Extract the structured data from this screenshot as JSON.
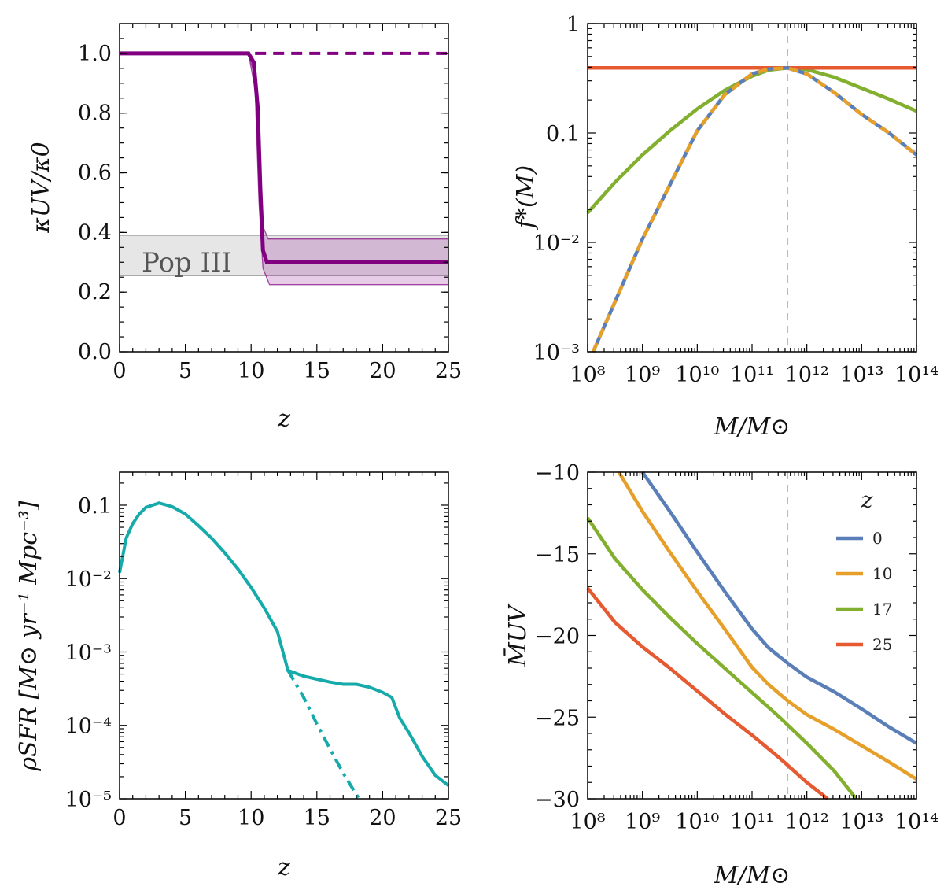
{
  "chart_data": [
    {
      "id": "kappa",
      "type": "line",
      "xlabel": "z",
      "ylabel": "κUV/κ0",
      "xlim": [
        0,
        25
      ],
      "ylim": [
        0,
        1.1
      ],
      "xticks": [
        0,
        5,
        10,
        15,
        20,
        25
      ],
      "xtick_labels": [
        "0",
        "5",
        "10",
        "15",
        "20",
        "25"
      ],
      "yticks": [
        0,
        0.2,
        0.4,
        0.6,
        0.8,
        1.0
      ],
      "ytick_labels": [
        "0.0",
        "0.2",
        "0.4",
        "0.6",
        "0.8",
        "1.0"
      ],
      "annotation": "Pop III",
      "popIII_band": {
        "z": [
          0,
          25
        ],
        "low": 0.255,
        "high": 0.39
      },
      "colors": {
        "main": "#800080",
        "band": "#e6e6e6"
      },
      "series": [
        {
          "name": "kappa",
          "style": "solid",
          "z": [
            0,
            9.8,
            10.2,
            10.5,
            10.7,
            10.9,
            11.2,
            25
          ],
          "y": [
            1.0,
            1.0,
            0.97,
            0.82,
            0.55,
            0.34,
            0.3,
            0.3
          ]
        },
        {
          "name": "kappa-upper",
          "style": "thin",
          "z": [
            0,
            9.8,
            10.3,
            10.6,
            10.9,
            11.3,
            25
          ],
          "y": [
            1.0,
            1.0,
            0.92,
            0.62,
            0.42,
            0.378,
            0.378
          ]
        },
        {
          "name": "kappa-lower",
          "style": "thin",
          "z": [
            0,
            9.8,
            10.3,
            10.6,
            10.9,
            11.4,
            25
          ],
          "y": [
            1.0,
            1.0,
            0.88,
            0.5,
            0.28,
            0.225,
            0.225
          ]
        },
        {
          "name": "kappa-constant",
          "style": "dashed",
          "z": [
            10.3,
            25
          ],
          "y": [
            1.0,
            1.0
          ]
        }
      ]
    },
    {
      "id": "fstar",
      "type": "line",
      "xlabel": "M/M⊙",
      "ylabel": "f*(M)",
      "xscale": "log",
      "yscale": "log",
      "xlim_log10": [
        8,
        14
      ],
      "ylim_log10": [
        -3,
        0
      ],
      "xtick_labels": [
        "10⁸",
        "10⁹",
        "10¹⁰",
        "10¹¹",
        "10¹²",
        "10¹³",
        "10¹⁴"
      ],
      "ytick_labels": [
        "10⁻³",
        "10⁻²",
        "0.1",
        "1"
      ],
      "vline_log10M": 11.65,
      "series": [
        {
          "name": "z=0",
          "color": "#5a7fb8",
          "log10M": [
            8.1,
            9,
            10,
            10.5,
            11,
            11.3,
            11.65,
            12,
            12.5,
            13,
            13.5,
            14
          ],
          "log10f": [
            -3.0,
            -1.97,
            -0.98,
            -0.65,
            -0.46,
            -0.415,
            -0.405,
            -0.46,
            -0.63,
            -0.83,
            -1.0,
            -1.2
          ]
        },
        {
          "name": "z=10",
          "color": "#e6a02a",
          "log10M": [
            8.1,
            9,
            10,
            10.5,
            11,
            11.3,
            11.65,
            12,
            12.5,
            13,
            13.5,
            14
          ],
          "log10f": [
            -3.0,
            -1.97,
            -0.98,
            -0.65,
            -0.46,
            -0.415,
            -0.405,
            -0.46,
            -0.63,
            -0.83,
            -1.0,
            -1.2
          ]
        },
        {
          "name": "z=17",
          "color": "#82b02e",
          "log10M": [
            8,
            8.5,
            9,
            9.5,
            10,
            10.5,
            11,
            11.3,
            11.65,
            12,
            12.5,
            13,
            13.5,
            14
          ],
          "log10f": [
            -1.73,
            -1.45,
            -1.2,
            -0.98,
            -0.78,
            -0.61,
            -0.48,
            -0.425,
            -0.405,
            -0.42,
            -0.49,
            -0.59,
            -0.69,
            -0.8
          ]
        },
        {
          "name": "z=25",
          "color": "#e65a32",
          "log10M": [
            8,
            14
          ],
          "log10f": [
            -0.405,
            -0.405
          ]
        }
      ]
    },
    {
      "id": "rho",
      "type": "line",
      "xlabel": "z",
      "ylabel": "ρSFR [M⊙ yr⁻¹ Mpc⁻³]",
      "yscale": "log",
      "xlim": [
        0,
        25
      ],
      "ylim_log10": [
        -5,
        -0.55
      ],
      "xticks": [
        0,
        5,
        10,
        15,
        20,
        25
      ],
      "xtick_labels": [
        "0",
        "5",
        "10",
        "15",
        "20",
        "25"
      ],
      "ytick_labels": [
        "10⁻⁵",
        "10⁻⁴",
        "10⁻³",
        "10⁻²",
        "0.1"
      ],
      "color": "#17aaaa",
      "series": [
        {
          "name": "total",
          "style": "solid",
          "z": [
            0,
            0.5,
            1,
            1.5,
            2,
            3,
            4,
            5,
            6,
            7,
            8,
            9,
            10,
            11,
            12,
            12.8,
            14,
            15,
            16,
            17,
            18,
            19,
            20,
            20.7,
            21.3,
            22,
            23,
            24,
            25
          ],
          "log10rho": [
            -1.92,
            -1.45,
            -1.25,
            -1.12,
            -1.03,
            -0.97,
            -1.02,
            -1.12,
            -1.28,
            -1.45,
            -1.65,
            -1.87,
            -2.12,
            -2.4,
            -2.72,
            -3.25,
            -3.33,
            -3.37,
            -3.41,
            -3.44,
            -3.44,
            -3.48,
            -3.55,
            -3.62,
            -3.9,
            -4.1,
            -4.42,
            -4.68,
            -4.82
          ]
        },
        {
          "name": "extrapolated",
          "style": "dashdot",
          "z": [
            12.8,
            14,
            15,
            16,
            17,
            18.2
          ],
          "log10rho": [
            -3.25,
            -3.62,
            -3.98,
            -4.32,
            -4.65,
            -5.0
          ]
        }
      ]
    },
    {
      "id": "muv",
      "type": "line",
      "xlabel": "M/M⊙",
      "ylabel": "M̄UV",
      "xscale": "log",
      "xlim_log10": [
        8,
        14
      ],
      "ylim": [
        -30,
        -10
      ],
      "xtick_labels": [
        "10⁸",
        "10⁹",
        "10¹⁰",
        "10¹¹",
        "10¹²",
        "10¹³",
        "10¹⁴"
      ],
      "yticks": [
        -10,
        -15,
        -20,
        -25,
        -30
      ],
      "ytick_labels": [
        "−10",
        "−15",
        "−20",
        "−25",
        "−30"
      ],
      "vline_log10M": 11.65,
      "legend_title": "z",
      "series": [
        {
          "name": "0",
          "color": "#5a7fb8",
          "log10M": [
            9.0,
            9.5,
            10,
            10.5,
            11,
            11.3,
            11.65,
            12,
            12.5,
            13,
            13.5,
            14
          ],
          "y": [
            -10.0,
            -12.4,
            -14.9,
            -17.3,
            -19.6,
            -20.75,
            -21.7,
            -22.55,
            -23.45,
            -24.5,
            -25.6,
            -26.6
          ]
        },
        {
          "name": "10",
          "color": "#e6a02a",
          "log10M": [
            8.57,
            9,
            9.5,
            10,
            10.5,
            11,
            11.3,
            11.65,
            12,
            12.5,
            13,
            13.5,
            14
          ],
          "y": [
            -10.0,
            -12.4,
            -14.9,
            -17.3,
            -19.6,
            -21.95,
            -23.0,
            -24.0,
            -24.85,
            -25.75,
            -26.75,
            -27.75,
            -28.8
          ]
        },
        {
          "name": "17",
          "color": "#82b02e",
          "log10M": [
            8,
            8.5,
            9,
            9.5,
            10,
            10.5,
            11,
            11.5,
            12,
            12.5,
            12.9
          ],
          "y": [
            -12.8,
            -15.3,
            -17.2,
            -18.9,
            -20.5,
            -22.0,
            -23.5,
            -25.0,
            -26.6,
            -28.3,
            -30.0
          ]
        },
        {
          "name": "25",
          "color": "#e65a32",
          "log10M": [
            8,
            8.5,
            9,
            9.5,
            10,
            10.5,
            11,
            11.5,
            12,
            12.38
          ],
          "y": [
            -17.1,
            -19.2,
            -20.7,
            -22.0,
            -23.4,
            -24.8,
            -26.1,
            -27.5,
            -29.0,
            -30.0
          ]
        }
      ]
    }
  ]
}
